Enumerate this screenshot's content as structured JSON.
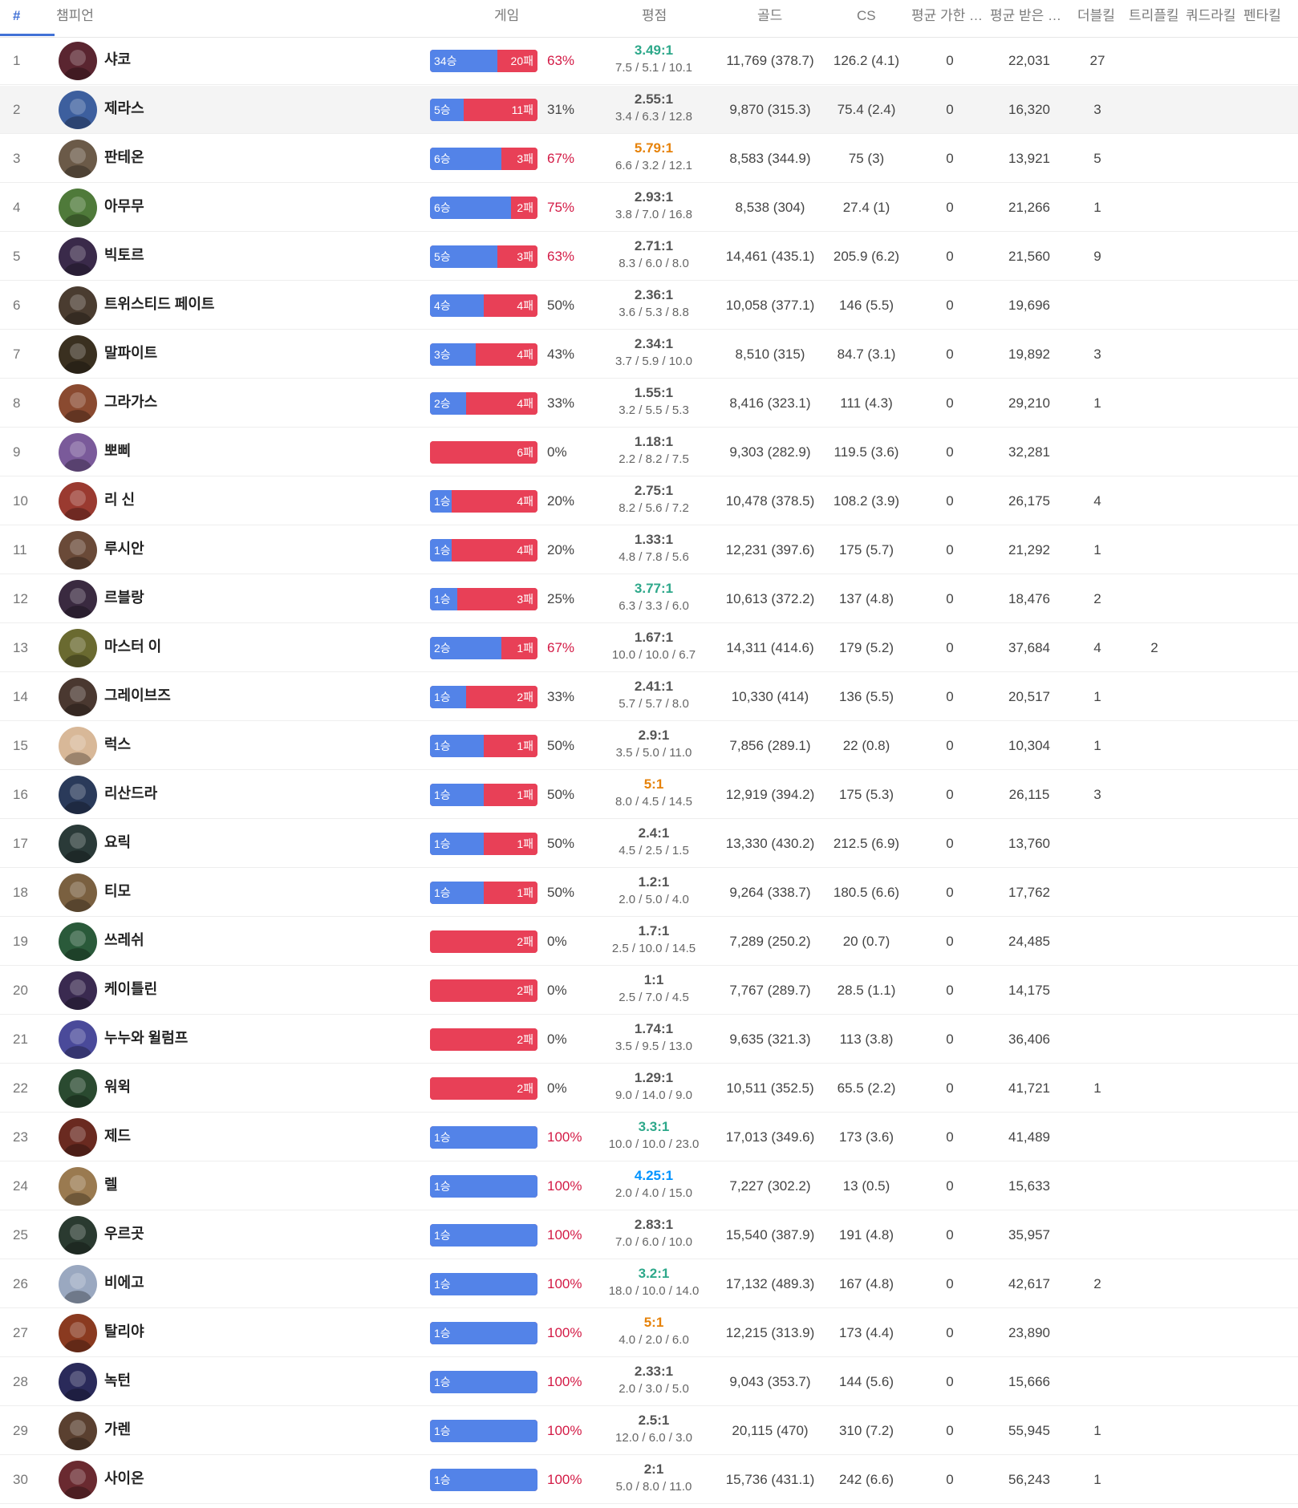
{
  "header": {
    "rank": "#",
    "champion": "챔피언",
    "game": "게임",
    "kda": "평점",
    "gold": "골드",
    "cs": "CS",
    "dealt": "평균 가한 …",
    "taken": "평균 받은 …",
    "double": "더블킬",
    "triple": "트리플킬",
    "quadra": "쿼드라킬",
    "penta": "펜타킬"
  },
  "colors": {
    "win": "#5383e8",
    "loss": "#e84057",
    "accent": "#4171d6"
  },
  "rows": [
    {
      "rank": "1",
      "name": "샤코",
      "wins": 34,
      "losses": 20,
      "win_label": "34승",
      "loss_label": "20패",
      "winrate": "63%",
      "ratio": "3.49:1",
      "ratio_color": "green",
      "kda": "7.5 / 5.1  / 10.1",
      "gold": "11,769 (378.7)",
      "cs": "126.2 (4.1)",
      "dealt": "0",
      "taken": "22,031",
      "double": "27",
      "triple": "",
      "quadra": "",
      "penta": "",
      "avatar_color": "#5a2530"
    },
    {
      "rank": "2",
      "name": "제라스",
      "wins": 5,
      "losses": 11,
      "win_label": "5승",
      "loss_label": "11패",
      "winrate": "31%",
      "ratio": "2.55:1",
      "ratio_color": "",
      "kda": "3.4 / 6.3  / 12.8",
      "gold": "9,870 (315.3)",
      "cs": "75.4 (2.4)",
      "dealt": "0",
      "taken": "16,320",
      "double": "3",
      "triple": "",
      "quadra": "",
      "penta": "",
      "avatar_color": "#3d5f9e"
    },
    {
      "rank": "3",
      "name": "판테온",
      "wins": 6,
      "losses": 3,
      "win_label": "6승",
      "loss_label": "3패",
      "winrate": "67%",
      "ratio": "5.79:1",
      "ratio_color": "orange",
      "kda": "6.6 / 3.2  / 12.1",
      "gold": "8,583 (344.9)",
      "cs": "75 (3)",
      "dealt": "0",
      "taken": "13,921",
      "double": "5",
      "triple": "",
      "quadra": "",
      "penta": "",
      "avatar_color": "#6b5a48"
    },
    {
      "rank": "4",
      "name": "아무무",
      "wins": 6,
      "losses": 2,
      "win_label": "6승",
      "loss_label": "2패",
      "winrate": "75%",
      "ratio": "2.93:1",
      "ratio_color": "",
      "kda": "3.8 / 7.0  / 16.8",
      "gold": "8,538 (304)",
      "cs": "27.4 (1)",
      "dealt": "0",
      "taken": "21,266",
      "double": "1",
      "triple": "",
      "quadra": "",
      "penta": "",
      "avatar_color": "#4f7a3a"
    },
    {
      "rank": "5",
      "name": "빅토르",
      "wins": 5,
      "losses": 3,
      "win_label": "5승",
      "loss_label": "3패",
      "winrate": "63%",
      "ratio": "2.71:1",
      "ratio_color": "",
      "kda": "8.3 / 6.0  / 8.0",
      "gold": "14,461 (435.1)",
      "cs": "205.9 (6.2)",
      "dealt": "0",
      "taken": "21,560",
      "double": "9",
      "triple": "",
      "quadra": "",
      "penta": "",
      "avatar_color": "#3a2a4a"
    },
    {
      "rank": "6",
      "name": "트위스티드 페이트",
      "wins": 4,
      "losses": 4,
      "win_label": "4승",
      "loss_label": "4패",
      "winrate": "50%",
      "ratio": "2.36:1",
      "ratio_color": "",
      "kda": "3.6 / 5.3  / 8.8",
      "gold": "10,058 (377.1)",
      "cs": "146 (5.5)",
      "dealt": "0",
      "taken": "19,696",
      "double": "",
      "triple": "",
      "quadra": "",
      "penta": "",
      "avatar_color": "#4a3c30"
    },
    {
      "rank": "7",
      "name": "말파이트",
      "wins": 3,
      "losses": 4,
      "win_label": "3승",
      "loss_label": "4패",
      "winrate": "43%",
      "ratio": "2.34:1",
      "ratio_color": "",
      "kda": "3.7 / 5.9  / 10.0",
      "gold": "8,510 (315)",
      "cs": "84.7 (3.1)",
      "dealt": "0",
      "taken": "19,892",
      "double": "3",
      "triple": "",
      "quadra": "",
      "penta": "",
      "avatar_color": "#3a3020"
    },
    {
      "rank": "8",
      "name": "그라가스",
      "wins": 2,
      "losses": 4,
      "win_label": "2승",
      "loss_label": "4패",
      "winrate": "33%",
      "ratio": "1.55:1",
      "ratio_color": "",
      "kda": "3.2 / 5.5  / 5.3",
      "gold": "8,416 (323.1)",
      "cs": "111 (4.3)",
      "dealt": "0",
      "taken": "29,210",
      "double": "1",
      "triple": "",
      "quadra": "",
      "penta": "",
      "avatar_color": "#8a4a30"
    },
    {
      "rank": "9",
      "name": "뽀삐",
      "wins": 0,
      "losses": 6,
      "win_label": "",
      "loss_label": "6패",
      "winrate": "0%",
      "ratio": "1.18:1",
      "ratio_color": "",
      "kda": "2.2 / 8.2  / 7.5",
      "gold": "9,303 (282.9)",
      "cs": "119.5 (3.6)",
      "dealt": "0",
      "taken": "32,281",
      "double": "",
      "triple": "",
      "quadra": "",
      "penta": "",
      "avatar_color": "#7a5a9a"
    },
    {
      "rank": "10",
      "name": "리 신",
      "wins": 1,
      "losses": 4,
      "win_label": "1승",
      "loss_label": "4패",
      "winrate": "20%",
      "ratio": "2.75:1",
      "ratio_color": "",
      "kda": "8.2 / 5.6  / 7.2",
      "gold": "10,478 (378.5)",
      "cs": "108.2 (3.9)",
      "dealt": "0",
      "taken": "26,175",
      "double": "4",
      "triple": "",
      "quadra": "",
      "penta": "",
      "avatar_color": "#9a3a30"
    },
    {
      "rank": "11",
      "name": "루시안",
      "wins": 1,
      "losses": 4,
      "win_label": "1승",
      "loss_label": "4패",
      "winrate": "20%",
      "ratio": "1.33:1",
      "ratio_color": "",
      "kda": "4.8 / 7.8  / 5.6",
      "gold": "12,231 (397.6)",
      "cs": "175 (5.7)",
      "dealt": "0",
      "taken": "21,292",
      "double": "1",
      "triple": "",
      "quadra": "",
      "penta": "",
      "avatar_color": "#6a4a38"
    },
    {
      "rank": "12",
      "name": "르블랑",
      "wins": 1,
      "losses": 3,
      "win_label": "1승",
      "loss_label": "3패",
      "winrate": "25%",
      "ratio": "3.77:1",
      "ratio_color": "green",
      "kda": "6.3 / 3.3  / 6.0",
      "gold": "10,613 (372.2)",
      "cs": "137 (4.8)",
      "dealt": "0",
      "taken": "18,476",
      "double": "2",
      "triple": "",
      "quadra": "",
      "penta": "",
      "avatar_color": "#3a2a40"
    },
    {
      "rank": "13",
      "name": "마스터 이",
      "wins": 2,
      "losses": 1,
      "win_label": "2승",
      "loss_label": "1패",
      "winrate": "67%",
      "ratio": "1.67:1",
      "ratio_color": "",
      "kda": "10.0 / 10.0  / 6.7",
      "gold": "14,311 (414.6)",
      "cs": "179 (5.2)",
      "dealt": "0",
      "taken": "37,684",
      "double": "4",
      "triple": "2",
      "quadra": "",
      "penta": "",
      "avatar_color": "#6a6a30"
    },
    {
      "rank": "14",
      "name": "그레이브즈",
      "wins": 1,
      "losses": 2,
      "win_label": "1승",
      "loss_label": "2패",
      "winrate": "33%",
      "ratio": "2.41:1",
      "ratio_color": "",
      "kda": "5.7 / 5.7  / 8.0",
      "gold": "10,330 (414)",
      "cs": "136 (5.5)",
      "dealt": "0",
      "taken": "20,517",
      "double": "1",
      "triple": "",
      "quadra": "",
      "penta": "",
      "avatar_color": "#4a3830"
    },
    {
      "rank": "15",
      "name": "럭스",
      "wins": 1,
      "losses": 1,
      "win_label": "1승",
      "loss_label": "1패",
      "winrate": "50%",
      "ratio": "2.9:1",
      "ratio_color": "",
      "kda": "3.5 / 5.0  / 11.0",
      "gold": "7,856 (289.1)",
      "cs": "22 (0.8)",
      "dealt": "0",
      "taken": "10,304",
      "double": "1",
      "triple": "",
      "quadra": "",
      "penta": "",
      "avatar_color": "#d8b898"
    },
    {
      "rank": "16",
      "name": "리산드라",
      "wins": 1,
      "losses": 1,
      "win_label": "1승",
      "loss_label": "1패",
      "winrate": "50%",
      "ratio": "5:1",
      "ratio_color": "orange",
      "kda": "8.0 / 4.5  / 14.5",
      "gold": "12,919 (394.2)",
      "cs": "175 (5.3)",
      "dealt": "0",
      "taken": "26,115",
      "double": "3",
      "triple": "",
      "quadra": "",
      "penta": "",
      "avatar_color": "#2a3a5a"
    },
    {
      "rank": "17",
      "name": "요릭",
      "wins": 1,
      "losses": 1,
      "win_label": "1승",
      "loss_label": "1패",
      "winrate": "50%",
      "ratio": "2.4:1",
      "ratio_color": "",
      "kda": "4.5 / 2.5  / 1.5",
      "gold": "13,330 (430.2)",
      "cs": "212.5 (6.9)",
      "dealt": "0",
      "taken": "13,760",
      "double": "",
      "triple": "",
      "quadra": "",
      "penta": "",
      "avatar_color": "#2a3a38"
    },
    {
      "rank": "18",
      "name": "티모",
      "wins": 1,
      "losses": 1,
      "win_label": "1승",
      "loss_label": "1패",
      "winrate": "50%",
      "ratio": "1.2:1",
      "ratio_color": "",
      "kda": "2.0 / 5.0  / 4.0",
      "gold": "9,264 (338.7)",
      "cs": "180.5 (6.6)",
      "dealt": "0",
      "taken": "17,762",
      "double": "",
      "triple": "",
      "quadra": "",
      "penta": "",
      "avatar_color": "#7a6040"
    },
    {
      "rank": "19",
      "name": "쓰레쉬",
      "wins": 0,
      "losses": 2,
      "win_label": "",
      "loss_label": "2패",
      "winrate": "0%",
      "ratio": "1.7:1",
      "ratio_color": "",
      "kda": "2.5 / 10.0  / 14.5",
      "gold": "7,289 (250.2)",
      "cs": "20 (0.7)",
      "dealt": "0",
      "taken": "24,485",
      "double": "",
      "triple": "",
      "quadra": "",
      "penta": "",
      "avatar_color": "#2a5a3a"
    },
    {
      "rank": "20",
      "name": "케이틀린",
      "wins": 0,
      "losses": 2,
      "win_label": "",
      "loss_label": "2패",
      "winrate": "0%",
      "ratio": "1:1",
      "ratio_color": "",
      "kda": "2.5 / 7.0  / 4.5",
      "gold": "7,767 (289.7)",
      "cs": "28.5 (1.1)",
      "dealt": "0",
      "taken": "14,175",
      "double": "",
      "triple": "",
      "quadra": "",
      "penta": "",
      "avatar_color": "#3a2a50"
    },
    {
      "rank": "21",
      "name": "누누와 윌럼프",
      "wins": 0,
      "losses": 2,
      "win_label": "",
      "loss_label": "2패",
      "winrate": "0%",
      "ratio": "1.74:1",
      "ratio_color": "",
      "kda": "3.5 / 9.5  / 13.0",
      "gold": "9,635 (321.3)",
      "cs": "113 (3.8)",
      "dealt": "0",
      "taken": "36,406",
      "double": "",
      "triple": "",
      "quadra": "",
      "penta": "",
      "avatar_color": "#4a4a9a"
    },
    {
      "rank": "22",
      "name": "워윅",
      "wins": 0,
      "losses": 2,
      "win_label": "",
      "loss_label": "2패",
      "winrate": "0%",
      "ratio": "1.29:1",
      "ratio_color": "",
      "kda": "9.0 / 14.0  / 9.0",
      "gold": "10,511 (352.5)",
      "cs": "65.5 (2.2)",
      "dealt": "0",
      "taken": "41,721",
      "double": "1",
      "triple": "",
      "quadra": "",
      "penta": "",
      "avatar_color": "#2a4a30"
    },
    {
      "rank": "23",
      "name": "제드",
      "wins": 1,
      "losses": 0,
      "win_label": "1승",
      "loss_label": "",
      "winrate": "100%",
      "ratio": "3.3:1",
      "ratio_color": "green",
      "kda": "10.0 / 10.0  / 23.0",
      "gold": "17,013 (349.6)",
      "cs": "173 (3.6)",
      "dealt": "0",
      "taken": "41,489",
      "double": "",
      "triple": "",
      "quadra": "",
      "penta": "",
      "avatar_color": "#6a2a20"
    },
    {
      "rank": "24",
      "name": "렐",
      "wins": 1,
      "losses": 0,
      "win_label": "1승",
      "loss_label": "",
      "winrate": "100%",
      "ratio": "4.25:1",
      "ratio_color": "blue",
      "kda": "2.0 / 4.0  / 15.0",
      "gold": "7,227 (302.2)",
      "cs": "13 (0.5)",
      "dealt": "0",
      "taken": "15,633",
      "double": "",
      "triple": "",
      "quadra": "",
      "penta": "",
      "avatar_color": "#9a7a50"
    },
    {
      "rank": "25",
      "name": "우르곳",
      "wins": 1,
      "losses": 0,
      "win_label": "1승",
      "loss_label": "",
      "winrate": "100%",
      "ratio": "2.83:1",
      "ratio_color": "",
      "kda": "7.0 / 6.0  / 10.0",
      "gold": "15,540 (387.9)",
      "cs": "191 (4.8)",
      "dealt": "0",
      "taken": "35,957",
      "double": "",
      "triple": "",
      "quadra": "",
      "penta": "",
      "avatar_color": "#2a3a30"
    },
    {
      "rank": "26",
      "name": "비에고",
      "wins": 1,
      "losses": 0,
      "win_label": "1승",
      "loss_label": "",
      "winrate": "100%",
      "ratio": "3.2:1",
      "ratio_color": "green",
      "kda": "18.0 / 10.0  / 14.0",
      "gold": "17,132 (489.3)",
      "cs": "167 (4.8)",
      "dealt": "0",
      "taken": "42,617",
      "double": "2",
      "triple": "",
      "quadra": "",
      "penta": "",
      "avatar_color": "#9aa8c0"
    },
    {
      "rank": "27",
      "name": "탈리야",
      "wins": 1,
      "losses": 0,
      "win_label": "1승",
      "loss_label": "",
      "winrate": "100%",
      "ratio": "5:1",
      "ratio_color": "orange",
      "kda": "4.0 / 2.0  / 6.0",
      "gold": "12,215 (313.9)",
      "cs": "173 (4.4)",
      "dealt": "0",
      "taken": "23,890",
      "double": "",
      "triple": "",
      "quadra": "",
      "penta": "",
      "avatar_color": "#8a3a20"
    },
    {
      "rank": "28",
      "name": "녹턴",
      "wins": 1,
      "losses": 0,
      "win_label": "1승",
      "loss_label": "",
      "winrate": "100%",
      "ratio": "2.33:1",
      "ratio_color": "",
      "kda": "2.0 / 3.0  / 5.0",
      "gold": "9,043 (353.7)",
      "cs": "144 (5.6)",
      "dealt": "0",
      "taken": "15,666",
      "double": "",
      "triple": "",
      "quadra": "",
      "penta": "",
      "avatar_color": "#2a2a5a"
    },
    {
      "rank": "29",
      "name": "가렌",
      "wins": 1,
      "losses": 0,
      "win_label": "1승",
      "loss_label": "",
      "winrate": "100%",
      "ratio": "2.5:1",
      "ratio_color": "",
      "kda": "12.0 / 6.0  / 3.0",
      "gold": "20,115 (470)",
      "cs": "310 (7.2)",
      "dealt": "0",
      "taken": "55,945",
      "double": "1",
      "triple": "",
      "quadra": "",
      "penta": "",
      "avatar_color": "#5a4030"
    },
    {
      "rank": "30",
      "name": "사이온",
      "wins": 1,
      "losses": 0,
      "win_label": "1승",
      "loss_label": "",
      "winrate": "100%",
      "ratio": "2:1",
      "ratio_color": "",
      "kda": "5.0 / 8.0  / 11.0",
      "gold": "15,736 (431.1)",
      "cs": "242 (6.6)",
      "dealt": "0",
      "taken": "56,243",
      "double": "1",
      "triple": "",
      "quadra": "",
      "penta": "",
      "avatar_color": "#6a2a30"
    }
  ]
}
